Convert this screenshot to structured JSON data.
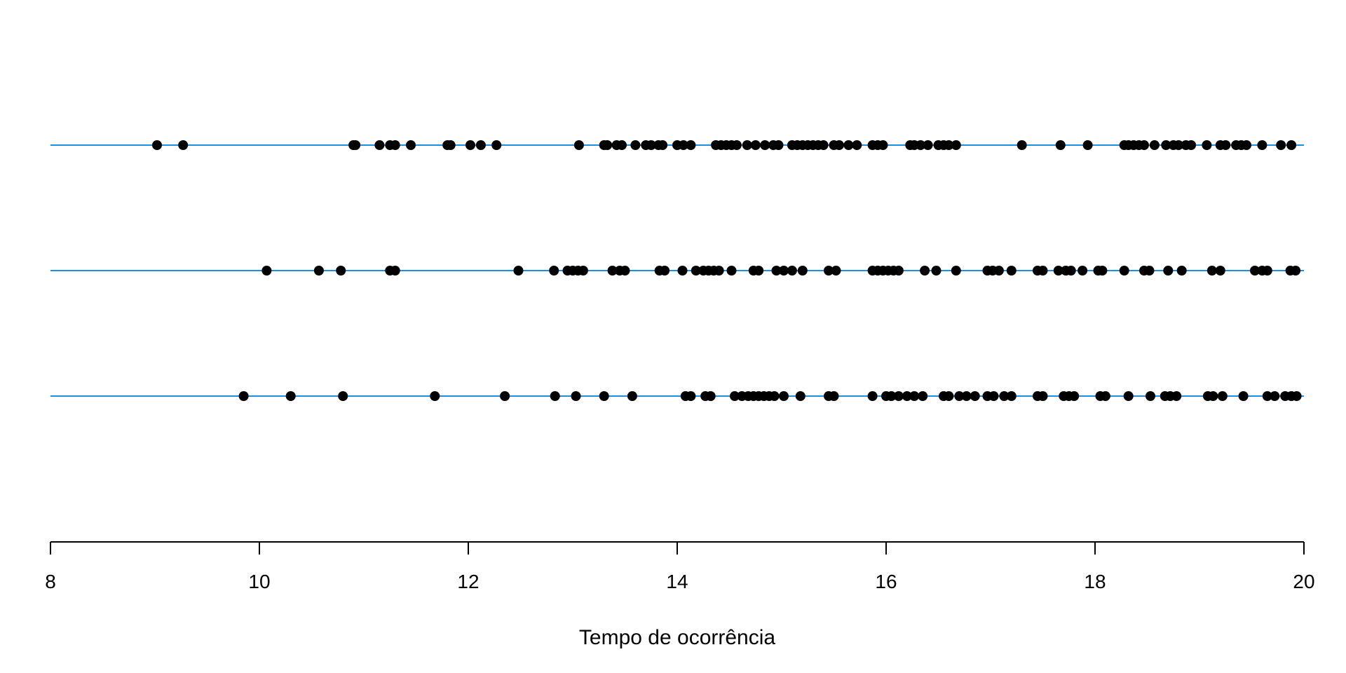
{
  "chart_data": {
    "type": "scatter",
    "xlabel": "Tempo de ocorrência",
    "xlim": [
      8,
      20
    ],
    "x_ticks": [
      "8",
      "10",
      "12",
      "14",
      "16",
      "18",
      "20"
    ],
    "line_color": "#1E8FE0",
    "point_color": "#000000",
    "series": [
      {
        "values": [
          9.02,
          9.27,
          10.9,
          10.92,
          11.15,
          11.25,
          11.3,
          11.45,
          11.8,
          11.83,
          12.02,
          12.12,
          12.27,
          13.06,
          13.3,
          13.33,
          13.42,
          13.47,
          13.6,
          13.7,
          13.75,
          13.82,
          13.86,
          14.0,
          14.06,
          14.13,
          14.37,
          14.42,
          14.47,
          14.52,
          14.57,
          14.67,
          14.75,
          14.84,
          14.92,
          14.97,
          15.1,
          15.15,
          15.2,
          15.25,
          15.3,
          15.35,
          15.4,
          15.5,
          15.55,
          15.64,
          15.72,
          15.87,
          15.92,
          15.97,
          16.23,
          16.27,
          16.33,
          16.4,
          16.5,
          16.55,
          16.6,
          16.67,
          17.3,
          17.67,
          17.93,
          18.28,
          18.32,
          18.37,
          18.42,
          18.47,
          18.57,
          18.68,
          18.75,
          18.8,
          18.87,
          18.92,
          19.07,
          19.2,
          19.25,
          19.35,
          19.4,
          19.45,
          19.6,
          19.78,
          19.88
        ]
      },
      {
        "values": [
          10.07,
          10.57,
          10.78,
          11.25,
          11.3,
          12.48,
          12.82,
          12.95,
          13.0,
          13.05,
          13.1,
          13.38,
          13.45,
          13.5,
          13.83,
          13.88,
          14.05,
          14.18,
          14.25,
          14.3,
          14.35,
          14.4,
          14.52,
          14.73,
          14.78,
          14.95,
          15.02,
          15.1,
          15.2,
          15.45,
          15.52,
          15.87,
          15.92,
          15.97,
          16.02,
          16.07,
          16.12,
          16.37,
          16.48,
          16.67,
          16.97,
          17.02,
          17.08,
          17.2,
          17.45,
          17.5,
          17.65,
          17.72,
          17.77,
          17.88,
          18.03,
          18.07,
          18.28,
          18.47,
          18.52,
          18.7,
          18.83,
          19.12,
          19.2,
          19.53,
          19.6,
          19.65,
          19.87,
          19.92
        ]
      },
      {
        "values": [
          9.85,
          10.3,
          10.8,
          11.68,
          12.35,
          12.83,
          13.03,
          13.3,
          13.57,
          14.08,
          14.13,
          14.27,
          14.32,
          14.55,
          14.62,
          14.68,
          14.73,
          14.78,
          14.83,
          14.88,
          14.93,
          15.02,
          15.18,
          15.45,
          15.5,
          15.87,
          16.0,
          16.05,
          16.12,
          16.2,
          16.27,
          16.35,
          16.55,
          16.6,
          16.7,
          16.77,
          16.85,
          16.97,
          17.03,
          17.13,
          17.2,
          17.45,
          17.5,
          17.7,
          17.75,
          17.8,
          18.05,
          18.1,
          18.32,
          18.53,
          18.67,
          18.72,
          18.78,
          19.08,
          19.13,
          19.22,
          19.42,
          19.65,
          19.72,
          19.82,
          19.88,
          19.93
        ]
      }
    ]
  }
}
